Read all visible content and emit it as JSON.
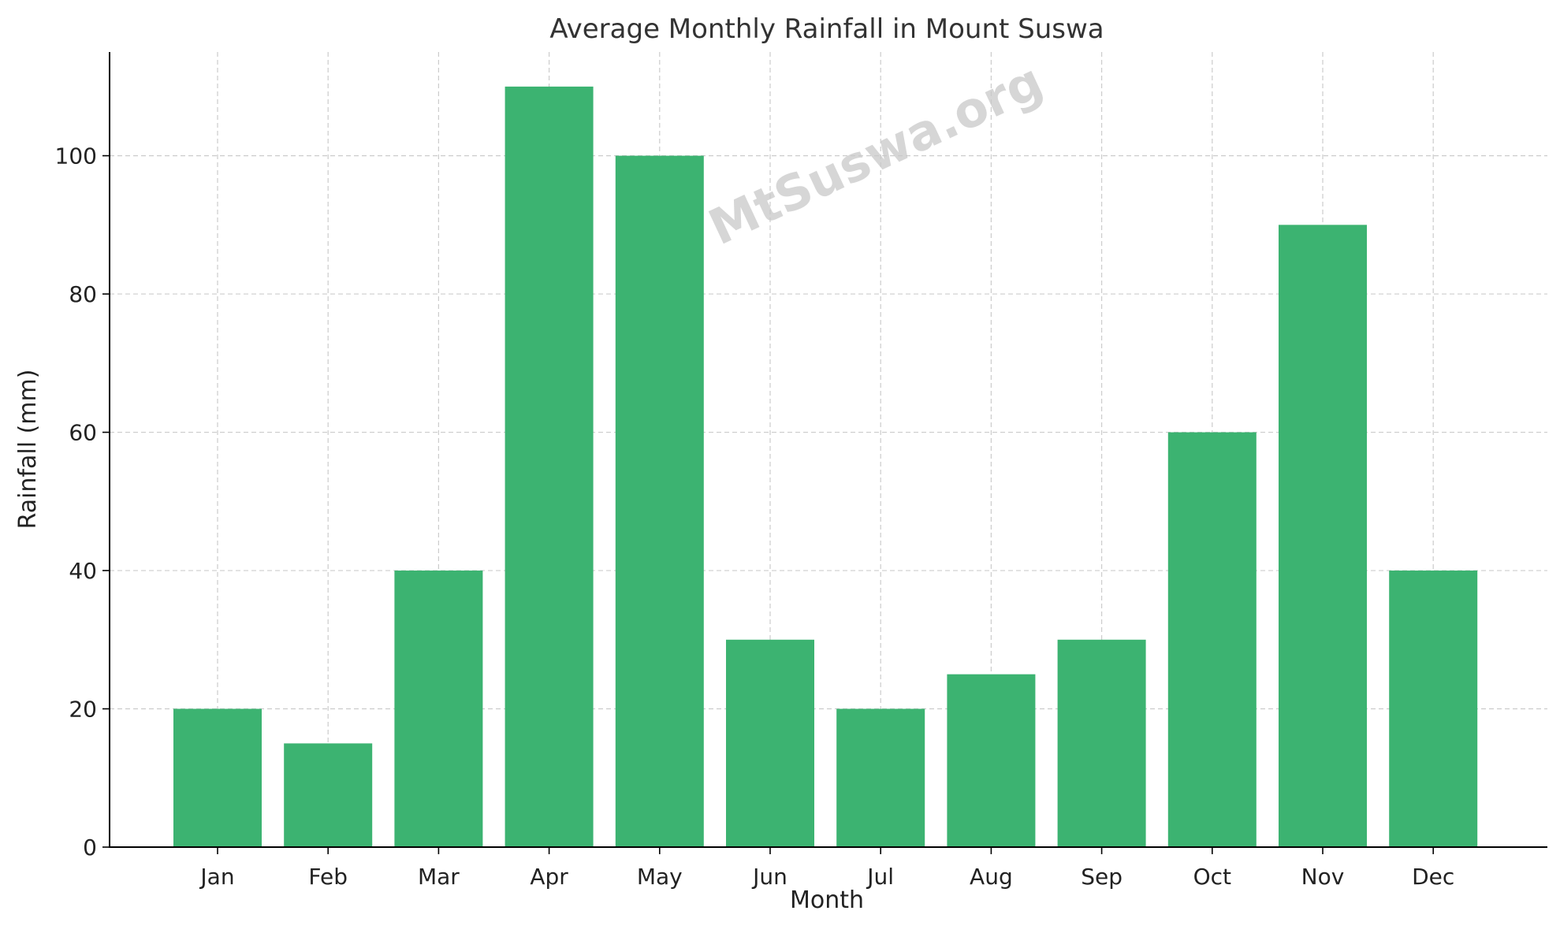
{
  "chart_data": {
    "type": "bar",
    "title": "Average Monthly Rainfall in Mount Suswa",
    "xlabel": "Month",
    "ylabel": "Rainfall (mm)",
    "categories": [
      "Jan",
      "Feb",
      "Mar",
      "Apr",
      "May",
      "Jun",
      "Jul",
      "Aug",
      "Sep",
      "Oct",
      "Nov",
      "Dec"
    ],
    "values": [
      20,
      15,
      40,
      110,
      100,
      30,
      20,
      25,
      30,
      60,
      90,
      40
    ],
    "ylim": [
      0,
      115
    ],
    "yticks": [
      0,
      20,
      40,
      60,
      80,
      100
    ],
    "grid": true,
    "bar_color": "#3cb371",
    "watermark": "MtSuswa.org"
  }
}
